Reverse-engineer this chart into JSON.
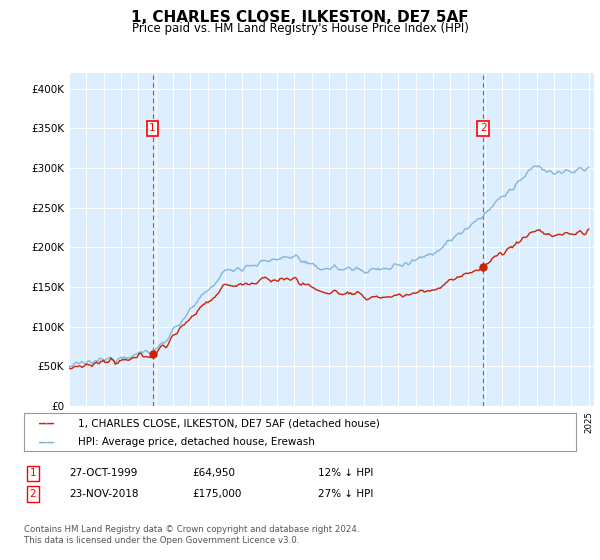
{
  "title": "1, CHARLES CLOSE, ILKESTON, DE7 5AF",
  "subtitle": "Price paid vs. HM Land Registry's House Price Index (HPI)",
  "ylim": [
    0,
    420000
  ],
  "yticks": [
    0,
    50000,
    100000,
    150000,
    200000,
    250000,
    300000,
    350000,
    400000
  ],
  "hpi_color": "#7aafd4",
  "price_color": "#cc2200",
  "bg_color": "#ddeeff",
  "sale1_x": 1999.82,
  "sale1_price": 64950,
  "sale2_x": 2018.9,
  "sale2_price": 175000,
  "legend_line1": "1, CHARLES CLOSE, ILKESTON, DE7 5AF (detached house)",
  "legend_line2": "HPI: Average price, detached house, Erewash",
  "table_rows": [
    {
      "num": "1",
      "date": "27-OCT-1999",
      "price": "£64,950",
      "hpi": "12% ↓ HPI"
    },
    {
      "num": "2",
      "date": "23-NOV-2018",
      "price": "£175,000",
      "hpi": "27% ↓ HPI"
    }
  ],
  "footer": "Contains HM Land Registry data © Crown copyright and database right 2024.\nThis data is licensed under the Open Government Licence v3.0."
}
